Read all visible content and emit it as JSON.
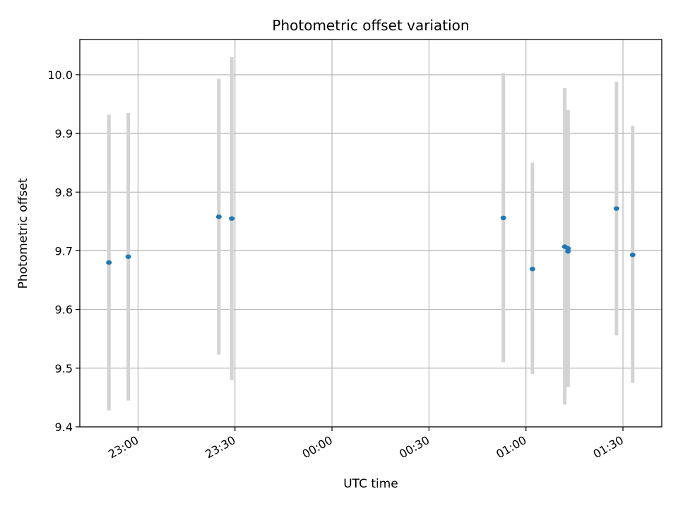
{
  "chart_data": {
    "type": "scatter",
    "title": "Photometric offset variation",
    "xlabel": "UTC time",
    "ylabel": "Photometric offset",
    "x_ticks": [
      "23:00",
      "23:30",
      "00:00",
      "00:30",
      "01:00",
      "01:30"
    ],
    "y_ticks": [
      "9.4",
      "9.5",
      "9.6",
      "9.7",
      "9.8",
      "9.9",
      "10.0"
    ],
    "xlim": [
      "22:42",
      "01:42"
    ],
    "ylim": [
      9.4,
      10.06
    ],
    "grid": true,
    "series": [
      {
        "points": [
          {
            "x": "22:51",
            "y": 9.68,
            "ylow": 9.428,
            "yhigh": 9.932
          },
          {
            "x": "22:57",
            "y": 9.69,
            "ylow": 9.445,
            "yhigh": 9.935
          },
          {
            "x": "23:25",
            "y": 9.758,
            "ylow": 9.523,
            "yhigh": 9.993
          },
          {
            "x": "23:29",
            "y": 9.755,
            "ylow": 9.48,
            "yhigh": 10.03
          },
          {
            "x": "00:53",
            "y": 9.756,
            "ylow": 9.51,
            "yhigh": 10.003
          },
          {
            "x": "01:02",
            "y": 9.669,
            "ylow": 9.49,
            "yhigh": 9.85
          },
          {
            "x": "01:12",
            "y": 9.707,
            "ylow": 9.438,
            "yhigh": 9.977
          },
          {
            "x": "01:13",
            "y": 9.704,
            "ylow": 9.468,
            "yhigh": 9.94
          },
          {
            "x": "01:13",
            "y": 9.699,
            "ylow": 9.485,
            "yhigh": 9.913
          },
          {
            "x": "01:28",
            "y": 9.772,
            "ylow": 9.556,
            "yhigh": 9.988
          },
          {
            "x": "01:33",
            "y": 9.693,
            "ylow": 9.475,
            "yhigh": 9.913
          }
        ]
      }
    ],
    "colors": {
      "marker": "#1f77b4",
      "errorbar": "#d3d3d3",
      "grid": "#b0b0b0",
      "axis": "#000000"
    }
  }
}
